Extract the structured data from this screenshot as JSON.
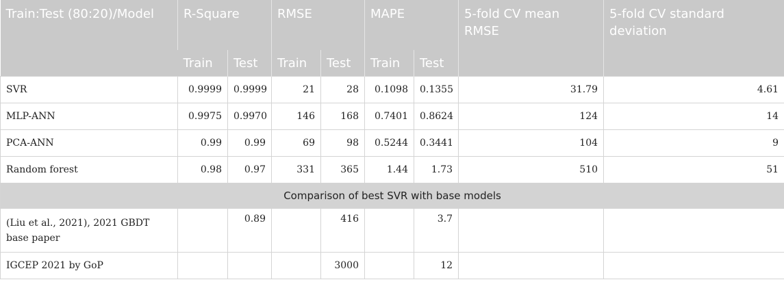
{
  "header": {
    "model_col": "Train:Test (80:20)/Model",
    "groups": [
      "R-Square",
      "RMSE",
      "MAPE",
      "5-fold CV mean RMSE",
      "5-fold CV standard deviation"
    ],
    "sub": [
      "Train",
      "Test",
      "Train",
      "Test",
      "Train",
      "Test"
    ]
  },
  "rows": [
    {
      "model": "SVR",
      "r2_train": "0.9999",
      "r2_test": "0.9999",
      "rmse_train": "21",
      "rmse_test": "28",
      "mape_train": "0.1098",
      "mape_test": "0.1355",
      "cv_mean": "31.79",
      "cv_sd": "4.61"
    },
    {
      "model": "MLP-ANN",
      "r2_train": "0.9975",
      "r2_test": "0.9970",
      "rmse_train": "146",
      "rmse_test": "168",
      "mape_train": "0.7401",
      "mape_test": "0.8624",
      "cv_mean": "124",
      "cv_sd": "14"
    },
    {
      "model": "PCA-ANN",
      "r2_train": "0.99",
      "r2_test": "0.99",
      "rmse_train": "69",
      "rmse_test": "98",
      "mape_train": "0.5244",
      "mape_test": "0.3441",
      "cv_mean": "104",
      "cv_sd": "9"
    },
    {
      "model": "Random forest",
      "r2_train": "0.98",
      "r2_test": "0.97",
      "rmse_train": "331",
      "rmse_test": "365",
      "mape_train": "1.44",
      "mape_test": "1.73",
      "cv_mean": "510",
      "cv_sd": "51"
    }
  ],
  "section_label": "Comparison of best SVR with base models",
  "base_rows": [
    {
      "model": "(Liu et al., 2021), 2021 GBDT base paper",
      "r2_train": "",
      "r2_test": "0.89",
      "rmse_train": "",
      "rmse_test": "416",
      "mape_train": "",
      "mape_test": "3.7",
      "cv_mean": "",
      "cv_sd": ""
    },
    {
      "model": "IGCEP 2021 by GoP",
      "r2_train": "",
      "r2_test": "",
      "rmse_train": "",
      "rmse_test": "3000",
      "mape_train": "",
      "mape_test": "12",
      "cv_mean": "",
      "cv_sd": ""
    }
  ]
}
